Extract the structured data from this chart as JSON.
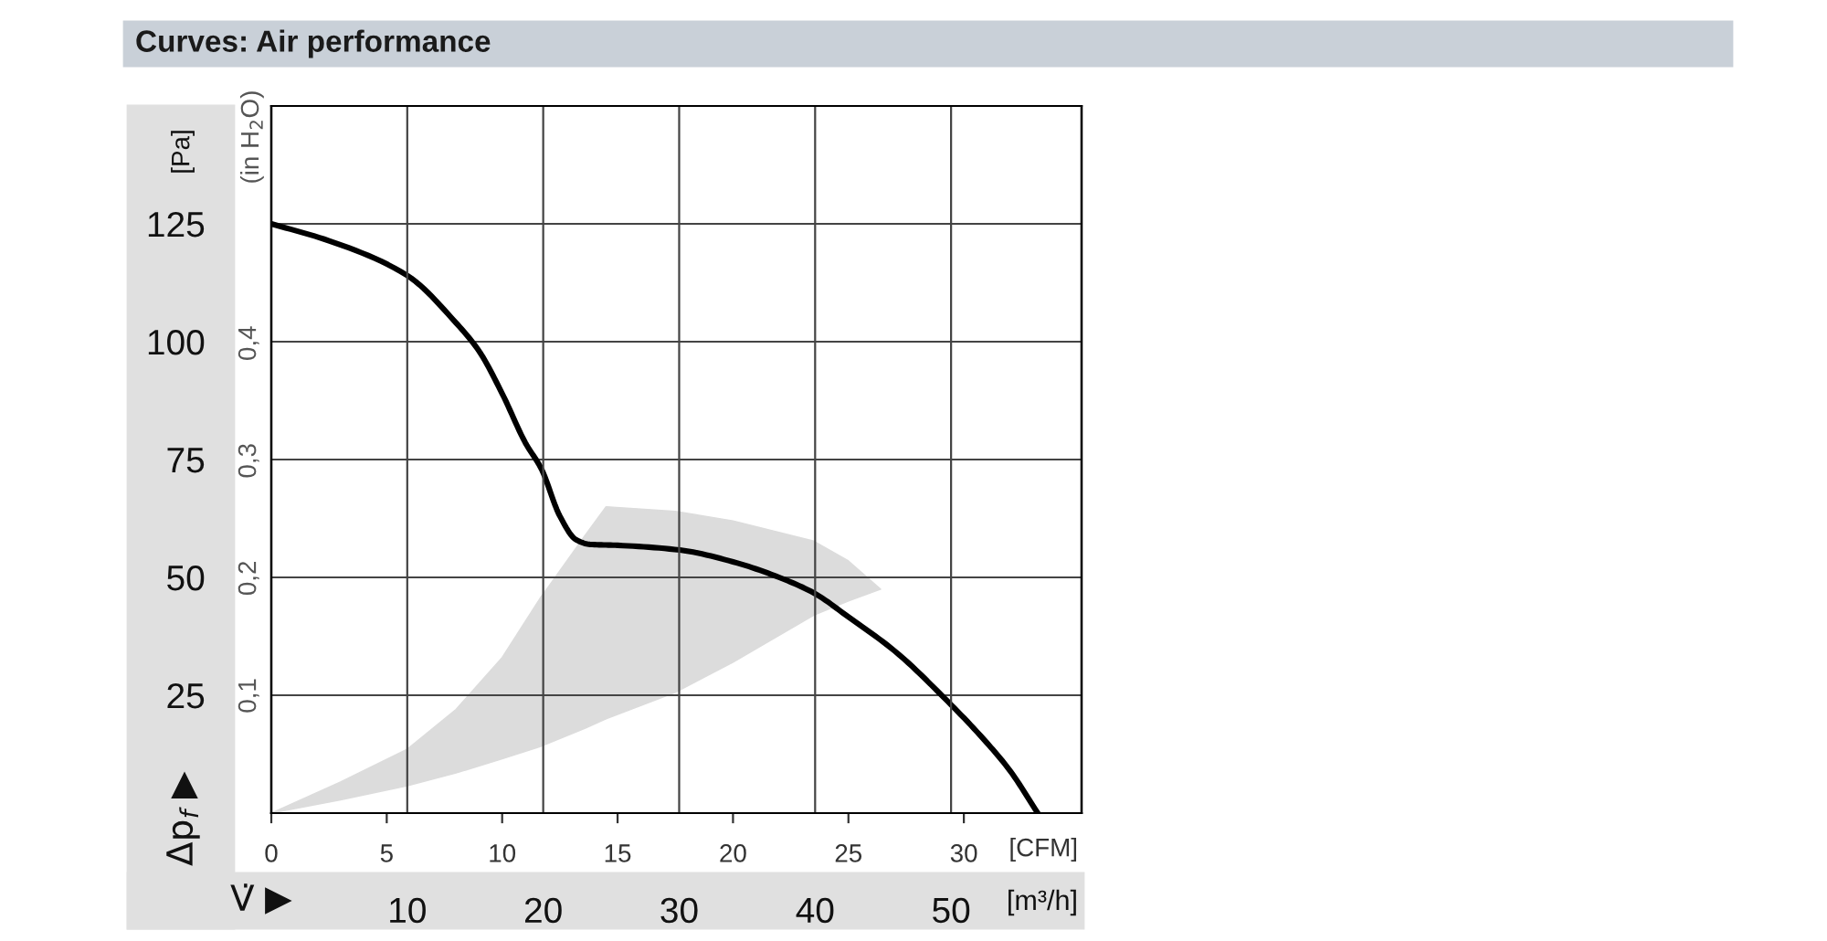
{
  "chart_data": {
    "type": "line",
    "title": "Curves: Air performance",
    "ylabel": "[Pa]",
    "y2label": "(in H$_{2}$O)",
    "xlabel": "[CFM]",
    "x2label": "[m³/h]",
    "annotations": [
      "Δp$_{f}$",
      "V̇"
    ],
    "xlim": [
      0,
      35.1
    ],
    "xticks": [
      0,
      5,
      10,
      15,
      20,
      25,
      30
    ],
    "x2lim": [
      0,
      59.6
    ],
    "x2ticks": [
      10,
      20,
      30,
      40,
      50
    ],
    "ylim": [
      0,
      150
    ],
    "yticks": [
      25,
      50,
      75,
      100,
      125
    ],
    "y2lim": [
      0,
      0.602
    ],
    "y2ticks": [
      {
        "value": 0.1,
        "label": "0,1"
      },
      {
        "value": 0.2,
        "label": "0,2"
      },
      {
        "value": 0.3,
        "label": "0,3"
      },
      {
        "value": 0.4,
        "label": "0,4"
      }
    ],
    "grid": true,
    "series": [
      {
        "type": "area",
        "color": "#dcdcdc",
        "values": [
          null,
          null,
          null,
          null,
          null,
          null,
          null,
          null,
          null,
          null,
          null,
          null,
          null,
          null
        ],
        "x": [
          0,
          3,
          5.9,
          8,
          10,
          11.7,
          12,
          13.6,
          14.5,
          17.5,
          20,
          23.5,
          25,
          26.4
        ],
        "lower": [
          0,
          2.8,
          5.8,
          8.5,
          11.5,
          14.2,
          14.8,
          18,
          20,
          25.6,
          32,
          42,
          45,
          47.5
        ],
        "upper": [
          0,
          6.6,
          13.6,
          22,
          33,
          46,
          48,
          59,
          65,
          64,
          62,
          57.7,
          53.5,
          47.5
        ]
      },
      {
        "color": "#000000",
        "x": [
          0,
          2.5,
          5.9,
          8,
          9,
          10,
          11,
          11.7,
          12.5,
          13.2,
          13.8,
          15,
          17.7,
          20,
          22,
          23.5,
          25,
          27,
          29.3,
          31,
          32,
          33.2
        ],
        "values": [
          125,
          121.4,
          114,
          104,
          98,
          89,
          78.6,
          73,
          63,
          58,
          57,
          56.8,
          55.8,
          53.3,
          50,
          46.7,
          41.6,
          34.4,
          23.7,
          14.9,
          9,
          0
        ]
      }
    ]
  }
}
